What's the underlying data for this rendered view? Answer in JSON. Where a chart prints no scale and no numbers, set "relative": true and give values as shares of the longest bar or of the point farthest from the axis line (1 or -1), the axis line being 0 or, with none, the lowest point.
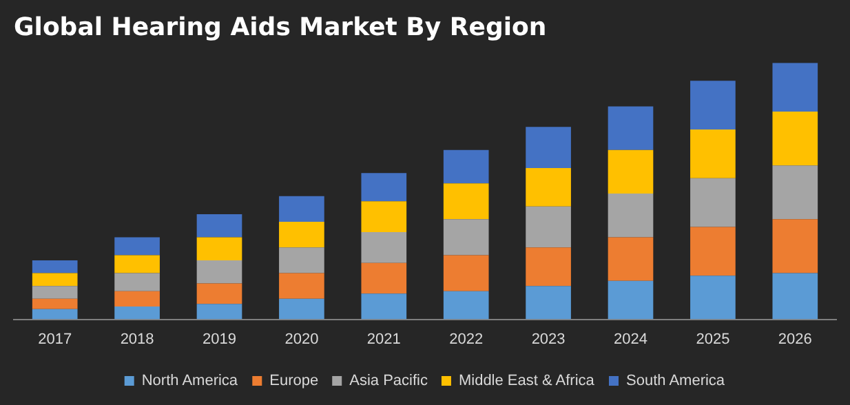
{
  "chart_data": {
    "type": "bar",
    "title": "Global Hearing Aids Market By Region",
    "stacked": true,
    "relative": true,
    "legend": "bottom",
    "grid": false,
    "categories": [
      "2017",
      "2018",
      "2019",
      "2020",
      "2021",
      "2022",
      "2023",
      "2024",
      "2025",
      "2026"
    ],
    "series": [
      {
        "name": "North America",
        "color": "#5b9bd5",
        "values": [
          0.04,
          0.05,
          0.06,
          0.08,
          0.1,
          0.11,
          0.13,
          0.15,
          0.17,
          0.18
        ]
      },
      {
        "name": "Europe",
        "color": "#ed7d31",
        "values": [
          0.04,
          0.06,
          0.08,
          0.1,
          0.12,
          0.14,
          0.15,
          0.17,
          0.19,
          0.21
        ]
      },
      {
        "name": "Asia Pacific",
        "color": "#a5a5a5",
        "values": [
          0.05,
          0.07,
          0.09,
          0.1,
          0.12,
          0.14,
          0.16,
          0.17,
          0.19,
          0.21
        ]
      },
      {
        "name": "Middle East & Africa",
        "color": "#ffc000",
        "values": [
          0.05,
          0.07,
          0.09,
          0.1,
          0.12,
          0.14,
          0.15,
          0.17,
          0.19,
          0.21
        ]
      },
      {
        "name": "South America",
        "color": "#4472c4",
        "values": [
          0.05,
          0.07,
          0.09,
          0.1,
          0.11,
          0.13,
          0.16,
          0.17,
          0.19,
          0.19
        ]
      }
    ]
  }
}
